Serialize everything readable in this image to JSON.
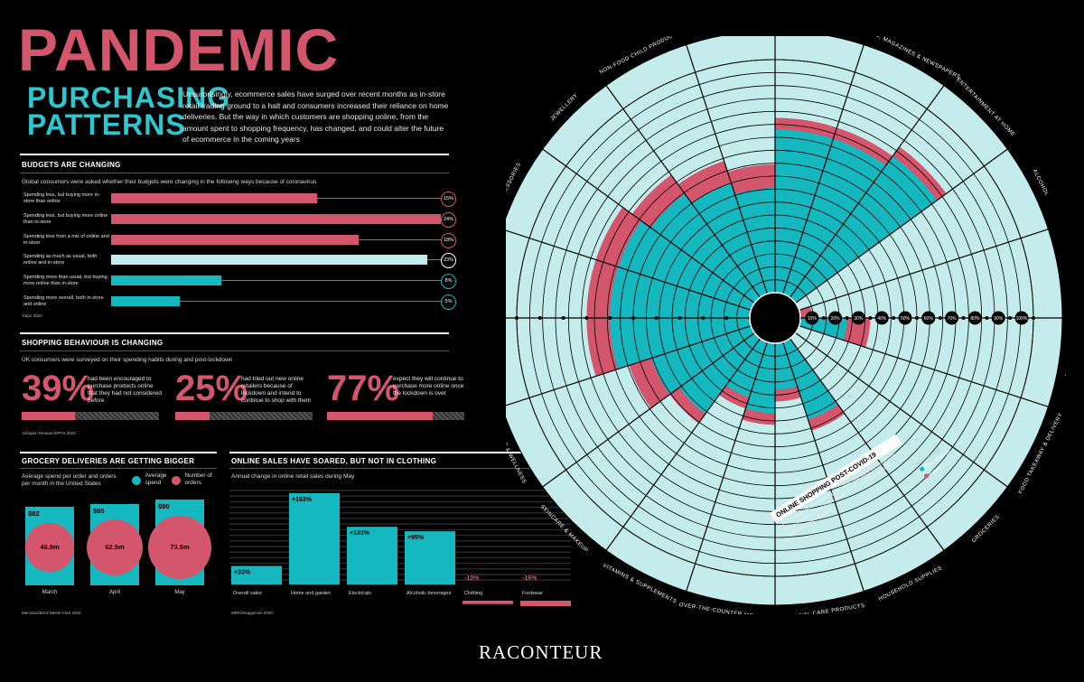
{
  "title": {
    "line1": "PANDEMIC",
    "line2": "PURCHASING",
    "line3": "PATTERNS"
  },
  "intro": "Unsurprisingly, ecommerce sales have surged over recent months as in-store retail trading ground to a halt and consumers increased their reliance on home deliveries. But the way in which customers are shopping online, from the amount spent to shopping frequency, has changed, and could alter the future of ecommerce in the coming years",
  "budgets": {
    "title": "BUDGETS ARE CHANGING",
    "subtitle": "Global consumers were asked whether their budgets were changing in the following ways because of coronavirus",
    "source": "Yotpo 2020",
    "items": [
      {
        "label": "Spending less, but buying more in-store than online",
        "value": "15%",
        "pct": 15,
        "color": "#d4566d"
      },
      {
        "label": "Spending less, but buying more online than in-store",
        "value": "24%",
        "pct": 24,
        "color": "#d4566d"
      },
      {
        "label": "Spending less from a mix of online and in-store",
        "value": "18%",
        "pct": 18,
        "color": "#d4566d"
      },
      {
        "label": "Spending as much as usual, both online and in-store",
        "value": "23%",
        "pct": 23,
        "color": "#c4ecec"
      },
      {
        "label": "Spending more than usual, but buying more online than in-store",
        "value": "8%",
        "pct": 8,
        "color": "#16b8c0"
      },
      {
        "label": "Spending more overall, both in-store and online",
        "value": "5%",
        "pct": 5,
        "color": "#16b8c0"
      }
    ]
  },
  "behaviour": {
    "title": "SHOPPING BEHAVIOUR IS CHANGING",
    "subtitle": "UK consumers were surveyed on their spending habits during and post-lockdown",
    "source": "Arlington Research/PFS 2020",
    "items": [
      {
        "value": "39%",
        "pct": 39,
        "text": "had been encouraged to purchase products online that they had not considered before"
      },
      {
        "value": "25%",
        "pct": 25,
        "text": "had tried out new online retailers because of lockdown and intend to continue to shop with them"
      },
      {
        "value": "77%",
        "pct": 77,
        "text": "expect they will continue to purchase more online once the lockdown is over"
      }
    ]
  },
  "grocery": {
    "title": "GROCERY DELIVERIES ARE GETTING BIGGER",
    "subtitle": "Average spend per order and orders per month in the United States",
    "legend_spend": "Average spend",
    "legend_orders": "Number of orders",
    "source": "Mercatus/Brick Meets Click 2020",
    "months": [
      {
        "month": "March",
        "spend": "$82",
        "spend_value": 82,
        "orders": "46.9m",
        "orders_value": 46.9
      },
      {
        "month": "April",
        "spend": "$85",
        "spend_value": 85,
        "orders": "62.5m",
        "orders_value": 62.5
      },
      {
        "month": "May",
        "spend": "$90",
        "spend_value": 90,
        "orders": "73.5m",
        "orders_value": 73.5
      }
    ]
  },
  "online": {
    "title": "ONLINE SALES HAVE SOARED, BUT NOT IN CLOTHING",
    "subtitle": "Annual change in online retail sales during May",
    "source": "IMRG/Capgemini 2020",
    "items": [
      {
        "label": "Overall sales",
        "value": "+33%",
        "num": 33
      },
      {
        "label": "Home and garden",
        "value": "+163%",
        "num": 163
      },
      {
        "label": "Electricals",
        "value": "+103%",
        "num": 103
      },
      {
        "label": "Alcoholic beverages",
        "value": "+95%",
        "num": 95
      },
      {
        "label": "Clothing",
        "value": "-10%",
        "num": -10
      },
      {
        "label": "Footwear",
        "value": "-16%",
        "num": -16
      }
    ]
  },
  "radial": {
    "box_title": "ONLINE SHOPPING POST-COVID-19",
    "box_text": "Percentage of Americans' purchases that were online before the coronavirus and share expected to be online after the outbreak has subsided",
    "source": "McKinsey 2020",
    "legend_pre": "Pre-COVID-19",
    "legend_future": "Future",
    "ticks": [
      "10%",
      "20%",
      "30%",
      "40%",
      "50%",
      "60%",
      "70%",
      "80%",
      "90%",
      "100%"
    ]
  },
  "colors": {
    "pink": "#d4566d",
    "teal": "#16b8c0",
    "light": "#c4ecec",
    "bg": "#000000"
  },
  "chart_data": {
    "type": "bar",
    "title": "ONLINE SHOPPING POST-COVID-19",
    "layout": "radial",
    "categories": [
      "Consumer electronics",
      "Books, magazines & newspapers",
      "Entertainment at home",
      "Alcohol",
      "Tobacco",
      "Snacks",
      "Food takeaway & delivery",
      "Groceries",
      "Household supplies",
      "Personal care products",
      "Over-the-counter medicines",
      "Vitamins & supplements",
      "Skincare & makeup",
      "Fitness & wellness",
      "Footwear",
      "Apparel",
      "Accessories",
      "Jewellery",
      "Non-food child products",
      "Furnishing & appliances"
    ],
    "series": [
      {
        "name": "Pre-COVID-19",
        "values": [
          70,
          70,
          75,
          0,
          0,
          20,
          0,
          0,
          35,
          20,
          30,
          25,
          40,
          45,
          60,
          60,
          60,
          55,
          50,
          45
        ]
      },
      {
        "name": "Future",
        "values": [
          75,
          75,
          80,
          0,
          5,
          30,
          0,
          0,
          40,
          25,
          35,
          30,
          45,
          55,
          70,
          70,
          70,
          65,
          60,
          55
        ]
      }
    ],
    "ylim": [
      0,
      100
    ],
    "ticks": [
      "10%",
      "20%",
      "30%",
      "40%",
      "50%",
      "60%",
      "70%",
      "80%",
      "90%",
      "100%"
    ]
  }
}
